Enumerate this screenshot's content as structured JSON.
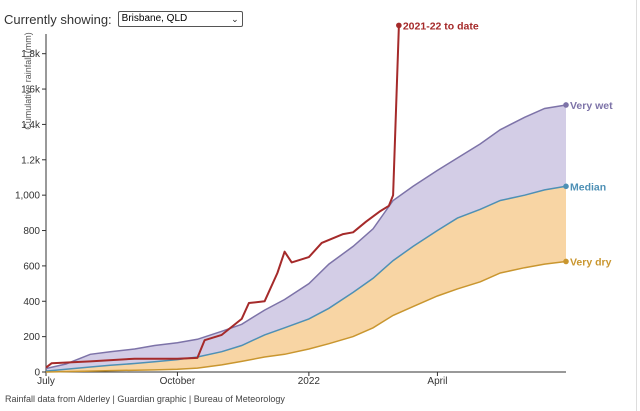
{
  "header": {
    "label": "Currently showing:",
    "selected_location": "Brisbane, QLD"
  },
  "footer": {
    "source": "Rainfall data from Alderley | Guardian graphic | Bureau of Meteorology"
  },
  "colors": {
    "very_wet": "#7d73a8",
    "very_wet_fill": "#d3cde6",
    "median": "#4e90b5",
    "very_dry": "#c9962f",
    "dry_fill": "#f8d5a4",
    "current_year": "#a52a2a"
  },
  "chart_data": {
    "type": "area",
    "title": "",
    "xlabel": "",
    "ylabel": "Cumulative rainfall (mm)",
    "ylim": [
      0,
      1900
    ],
    "xlim": [
      "2021-07-01",
      "2022-06-30"
    ],
    "grid": false,
    "y_ticks": [
      "0",
      "200",
      "400",
      "600",
      "800",
      "1,000",
      "1.2k",
      "1.4k",
      "1.6k",
      "1.8k"
    ],
    "y_tick_values": [
      0,
      200,
      400,
      600,
      800,
      1000,
      1200,
      1400,
      1600,
      1800
    ],
    "x_ticks": [
      {
        "label": "July",
        "date": "2021-07-01"
      },
      {
        "label": "October",
        "date": "2021-10-01"
      },
      {
        "label": "2022",
        "date": "2022-01-01"
      },
      {
        "label": "April",
        "date": "2022-04-01"
      }
    ],
    "series": [
      {
        "name": "Very wet",
        "key": "very_wet",
        "points": [
          [
            "2021-07-01",
            20
          ],
          [
            "2021-07-15",
            45
          ],
          [
            "2021-08-01",
            100
          ],
          [
            "2021-08-15",
            115
          ],
          [
            "2021-09-01",
            130
          ],
          [
            "2021-09-15",
            150
          ],
          [
            "2021-10-01",
            165
          ],
          [
            "2021-10-15",
            185
          ],
          [
            "2021-11-01",
            230
          ],
          [
            "2021-11-15",
            270
          ],
          [
            "2021-12-01",
            350
          ],
          [
            "2021-12-15",
            410
          ],
          [
            "2022-01-01",
            500
          ],
          [
            "2022-01-15",
            610
          ],
          [
            "2022-02-01",
            710
          ],
          [
            "2022-02-15",
            810
          ],
          [
            "2022-03-01",
            970
          ],
          [
            "2022-03-15",
            1050
          ],
          [
            "2022-04-01",
            1140
          ],
          [
            "2022-04-15",
            1210
          ],
          [
            "2022-05-01",
            1290
          ],
          [
            "2022-05-15",
            1370
          ],
          [
            "2022-06-01",
            1440
          ],
          [
            "2022-06-15",
            1490
          ],
          [
            "2022-06-30",
            1510
          ]
        ]
      },
      {
        "name": "Median",
        "key": "median",
        "points": [
          [
            "2021-07-01",
            5
          ],
          [
            "2021-07-15",
            15
          ],
          [
            "2021-08-01",
            28
          ],
          [
            "2021-08-15",
            38
          ],
          [
            "2021-09-01",
            48
          ],
          [
            "2021-09-15",
            58
          ],
          [
            "2021-10-01",
            70
          ],
          [
            "2021-10-15",
            85
          ],
          [
            "2021-11-01",
            115
          ],
          [
            "2021-11-15",
            150
          ],
          [
            "2021-12-01",
            210
          ],
          [
            "2021-12-15",
            250
          ],
          [
            "2022-01-01",
            300
          ],
          [
            "2022-01-15",
            360
          ],
          [
            "2022-02-01",
            450
          ],
          [
            "2022-02-15",
            530
          ],
          [
            "2022-03-01",
            630
          ],
          [
            "2022-03-15",
            710
          ],
          [
            "2022-04-01",
            800
          ],
          [
            "2022-04-15",
            870
          ],
          [
            "2022-05-01",
            920
          ],
          [
            "2022-05-15",
            970
          ],
          [
            "2022-06-01",
            1000
          ],
          [
            "2022-06-15",
            1030
          ],
          [
            "2022-06-30",
            1050
          ]
        ]
      },
      {
        "name": "Very dry",
        "key": "very_dry",
        "points": [
          [
            "2021-07-01",
            0
          ],
          [
            "2021-07-15",
            2
          ],
          [
            "2021-08-01",
            5
          ],
          [
            "2021-08-15",
            8
          ],
          [
            "2021-09-01",
            10
          ],
          [
            "2021-09-15",
            12
          ],
          [
            "2021-10-01",
            15
          ],
          [
            "2021-10-15",
            22
          ],
          [
            "2021-11-01",
            40
          ],
          [
            "2021-11-15",
            60
          ],
          [
            "2021-12-01",
            85
          ],
          [
            "2021-12-15",
            100
          ],
          [
            "2022-01-01",
            130
          ],
          [
            "2022-01-15",
            160
          ],
          [
            "2022-02-01",
            200
          ],
          [
            "2022-02-15",
            250
          ],
          [
            "2022-03-01",
            320
          ],
          [
            "2022-03-15",
            370
          ],
          [
            "2022-04-01",
            430
          ],
          [
            "2022-04-15",
            470
          ],
          [
            "2022-05-01",
            510
          ],
          [
            "2022-05-15",
            560
          ],
          [
            "2022-06-01",
            590
          ],
          [
            "2022-06-15",
            610
          ],
          [
            "2022-06-30",
            625
          ]
        ]
      },
      {
        "name": "2021-22 to date",
        "key": "current_year",
        "points": [
          [
            "2021-07-01",
            25
          ],
          [
            "2021-07-05",
            50
          ],
          [
            "2021-08-01",
            60
          ],
          [
            "2021-09-01",
            75
          ],
          [
            "2021-10-01",
            75
          ],
          [
            "2021-10-15",
            80
          ],
          [
            "2021-10-20",
            180
          ],
          [
            "2021-11-01",
            210
          ],
          [
            "2021-11-15",
            300
          ],
          [
            "2021-11-20",
            390
          ],
          [
            "2021-12-01",
            400
          ],
          [
            "2021-12-10",
            560
          ],
          [
            "2021-12-15",
            680
          ],
          [
            "2021-12-20",
            620
          ],
          [
            "2022-01-01",
            650
          ],
          [
            "2022-01-10",
            730
          ],
          [
            "2022-01-25",
            780
          ],
          [
            "2022-02-01",
            790
          ],
          [
            "2022-02-10",
            850
          ],
          [
            "2022-02-20",
            910
          ],
          [
            "2022-02-26",
            940
          ],
          [
            "2022-03-01",
            1000
          ],
          [
            "2022-03-05",
            1960
          ]
        ]
      }
    ]
  }
}
